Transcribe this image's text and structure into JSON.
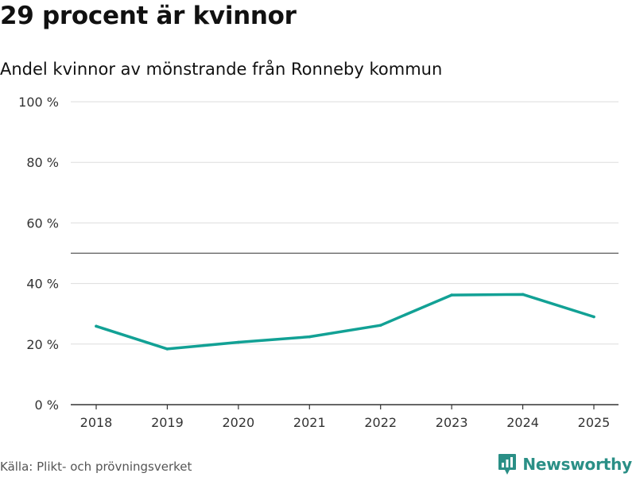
{
  "header": {
    "title": "29 procent är kvinnor",
    "subtitle": "Andel kvinnor av mönstrande från Ronneby kommun"
  },
  "footer": {
    "source": "Källa: Plikt- och prövningsverket",
    "brand": "Newsworthy"
  },
  "colors": {
    "line": "#12a195",
    "grid": "#dddddd",
    "reference": "#555555",
    "axis": "#333333",
    "brand": "#2a8f86"
  },
  "chart_data": {
    "type": "line",
    "title": "29 procent är kvinnor",
    "subtitle": "Andel kvinnor av mönstrande från Ronneby kommun",
    "xlabel": "",
    "ylabel": "",
    "categories": [
      "2018",
      "2019",
      "2020",
      "2021",
      "2022",
      "2023",
      "2024",
      "2025"
    ],
    "series": [
      {
        "name": "Andel kvinnor",
        "values": [
          25.9,
          18.4,
          20.6,
          22.4,
          26.2,
          36.2,
          36.4,
          29.0
        ]
      }
    ],
    "ylim": [
      0,
      100
    ],
    "yticks": [
      0,
      20,
      40,
      60,
      80,
      100
    ],
    "ytick_labels": [
      "0 %",
      "20 %",
      "40 %",
      "60 %",
      "80 %",
      "100 %"
    ],
    "reference_line": 50,
    "grid": true,
    "legend": "none"
  }
}
